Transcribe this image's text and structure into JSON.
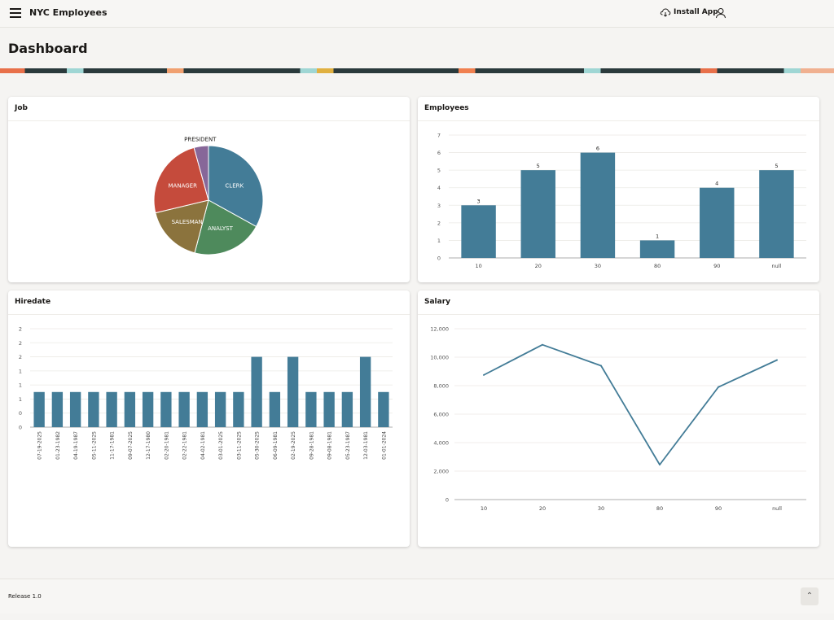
{
  "header": {
    "app_title": "NYC Employees",
    "install_label": "Install App"
  },
  "page": {
    "title": "Dashboard"
  },
  "icons": {
    "menu": "hamburger-icon",
    "install": "cloud-download-icon",
    "user": "user-icon",
    "top": "chevron-up-icon"
  },
  "colors": {
    "primary": "#437c97",
    "clerk": "#437c97",
    "analyst": "#4e8a5c",
    "salesman": "#8b733d",
    "manager": "#c54b3c",
    "president": "#876799"
  },
  "cards": {
    "job": "Job",
    "employees": "Employees",
    "hiredate": "Hiredate",
    "salary": "Salary"
  },
  "footer": {
    "release": "Release 1.0",
    "top_symbol": "⌃"
  },
  "chart_data": [
    {
      "id": "job",
      "type": "pie",
      "title": "Job",
      "labels": [
        "CLERK",
        "ANALYST",
        "SALESMAN",
        "MANAGER",
        "PRESIDENT"
      ],
      "values": [
        7.7,
        4.9,
        4.0,
        5.7,
        1.0
      ]
    },
    {
      "id": "employees",
      "type": "bar",
      "title": "Employees",
      "categories": [
        "10",
        "20",
        "30",
        "80",
        "90",
        "null"
      ],
      "values": [
        3,
        5,
        6,
        1,
        4,
        5
      ],
      "yticks": [
        0,
        1,
        2,
        3,
        4,
        5,
        6,
        7
      ],
      "ylim": [
        0,
        7
      ]
    },
    {
      "id": "hiredate",
      "type": "bar",
      "title": "Hiredate",
      "categories": [
        "07-19-2025",
        "01-23-1982",
        "04-19-1987",
        "05-11-2025",
        "11-17-1981",
        "09-07-2025",
        "12-17-1980",
        "02-20-1981",
        "02-22-1981",
        "04-02-1981",
        "03-01-2025",
        "03-11-2025",
        "05-30-2025",
        "06-09-1981",
        "02-19-2025",
        "09-28-1981",
        "09-08-1981",
        "05-23-1987",
        "12-03-1981",
        "01-01-2024"
      ],
      "values": [
        1,
        1,
        1,
        1,
        1,
        1,
        1,
        1,
        1,
        1,
        1,
        1,
        2,
        1,
        2,
        1,
        1,
        1,
        2,
        1
      ],
      "ytick_labels": [
        "0",
        "0",
        "1",
        "1",
        "1",
        "2",
        "2",
        "2"
      ],
      "ytick_values": [
        0,
        0.4,
        0.8,
        1.2,
        1.6,
        2.0,
        2.4,
        2.8
      ],
      "ylim": [
        0,
        2.8
      ]
    },
    {
      "id": "salary",
      "type": "line",
      "title": "Salary",
      "categories": [
        "10",
        "20",
        "30",
        "80",
        "90",
        "null"
      ],
      "values": [
        8750,
        10875,
        9400,
        2450,
        7900,
        9800
      ],
      "yticks": [
        0,
        2000,
        4000,
        6000,
        8000,
        10000,
        12000
      ],
      "ytick_labels": [
        "0",
        "2,000",
        "4,000",
        "6,000",
        "8,000",
        "10,000",
        "12,000"
      ],
      "ylim": [
        0,
        12000
      ]
    }
  ]
}
